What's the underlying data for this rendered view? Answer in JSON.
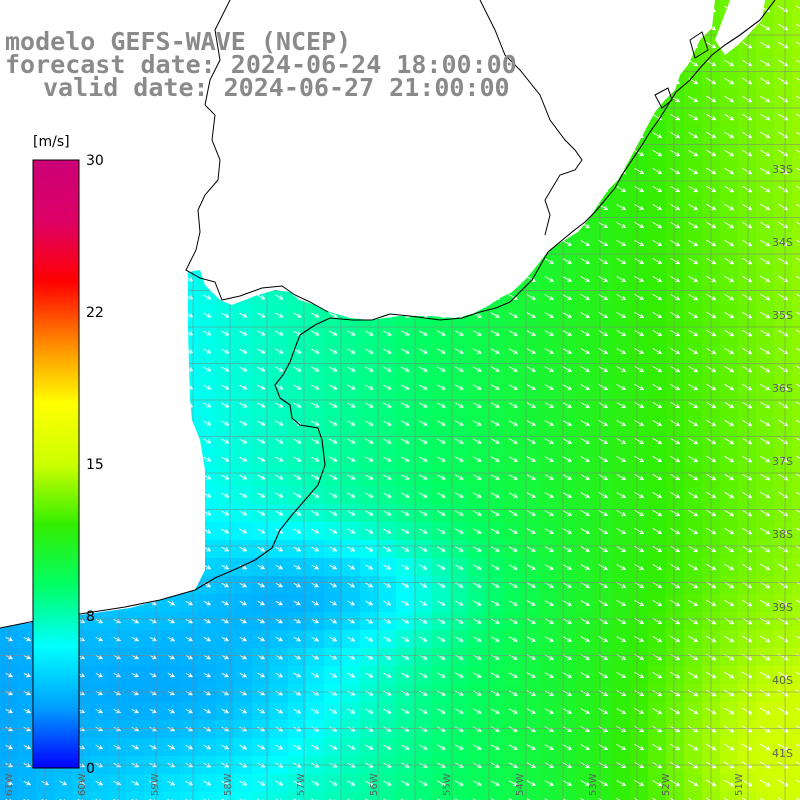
{
  "map": {
    "title": "modelo GEFS-WAVE (NCEP)",
    "forecast_date": "forecast date: 2024-06-24 18:00:00",
    "valid_date": "valid date: 2024-06-27 21:00:00",
    "lat_labels": [
      "33S",
      "34S",
      "35S",
      "36S",
      "37S",
      "38S",
      "39S",
      "40S",
      "41S"
    ],
    "lon_labels": [
      "61W",
      "60W",
      "59W",
      "58W",
      "57W",
      "56W",
      "55W",
      "54W",
      "53W",
      "52W",
      "51W"
    ],
    "colorbar": {
      "unit": "[m/s]",
      "ticks": [
        "30",
        "22",
        "15",
        "8",
        "0"
      ],
      "stops": [
        "#0000ff",
        "#00a0ff",
        "#00ffff",
        "#00ff66",
        "#33ee00",
        "#ccff00",
        "#ffff00",
        "#ff8800",
        "#ff0000",
        "#dd0066",
        "#cc0077"
      ]
    },
    "field": "wind speed and direction",
    "land_color": "#ffffff",
    "coastline_color": "#000000"
  }
}
